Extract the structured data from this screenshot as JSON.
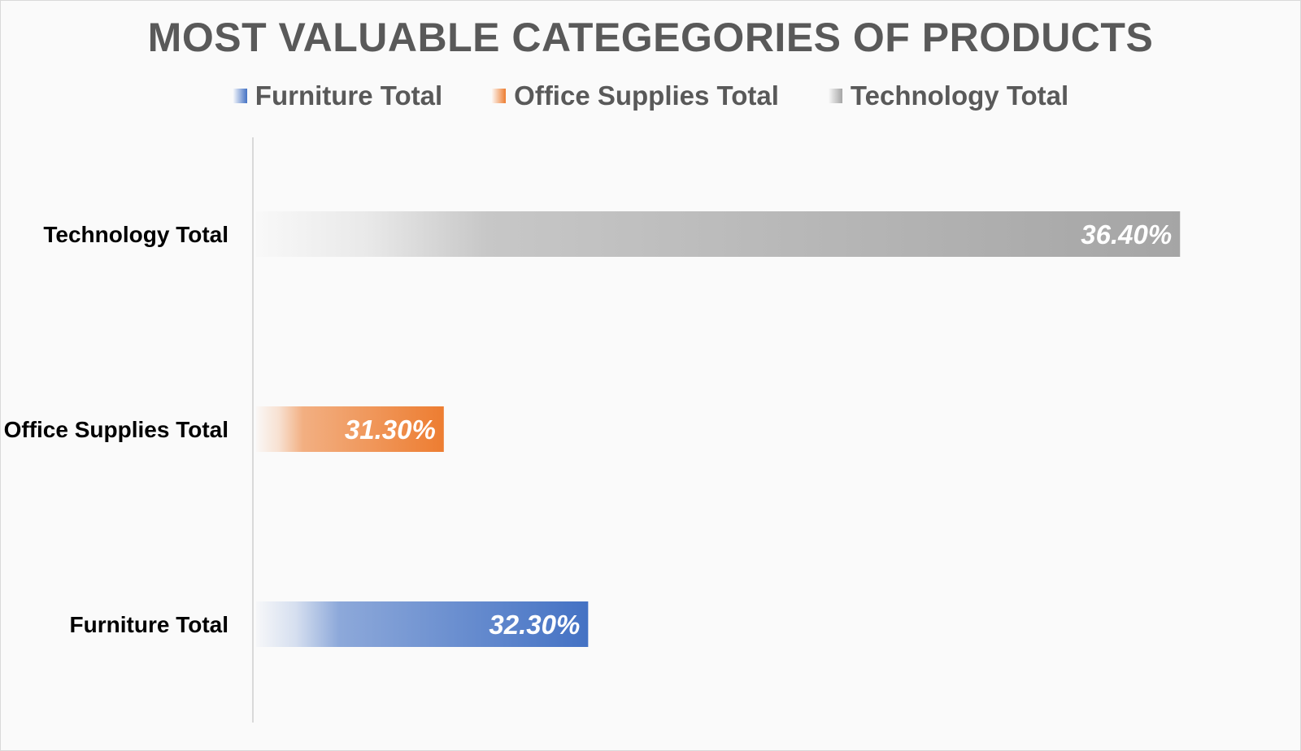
{
  "chart_data": {
    "type": "bar",
    "orientation": "horizontal",
    "title": "MOST VALUABLE CATEGEGORIES OF PRODUCTS",
    "categories": [
      "Furniture Total",
      "Office Supplies Total",
      "Technology Total"
    ],
    "series": [
      {
        "name": "Furniture Total",
        "category": "Furniture Total",
        "value": 32.3,
        "label": "32.30%",
        "color": "#4472C4"
      },
      {
        "name": "Office Supplies Total",
        "category": "Office Supplies Total",
        "value": 31.3,
        "label": "31.30%",
        "color": "#ED7D31"
      },
      {
        "name": "Technology Total",
        "category": "Technology Total",
        "value": 36.4,
        "label": "36.40%",
        "color": "#A5A5A5"
      }
    ],
    "values": [
      32.3,
      31.3,
      36.4
    ],
    "xlim": [
      30.0,
      36.5
    ],
    "xlabel": "",
    "ylabel": "",
    "grid": false,
    "legend_position": "top",
    "fill": "gradient"
  }
}
